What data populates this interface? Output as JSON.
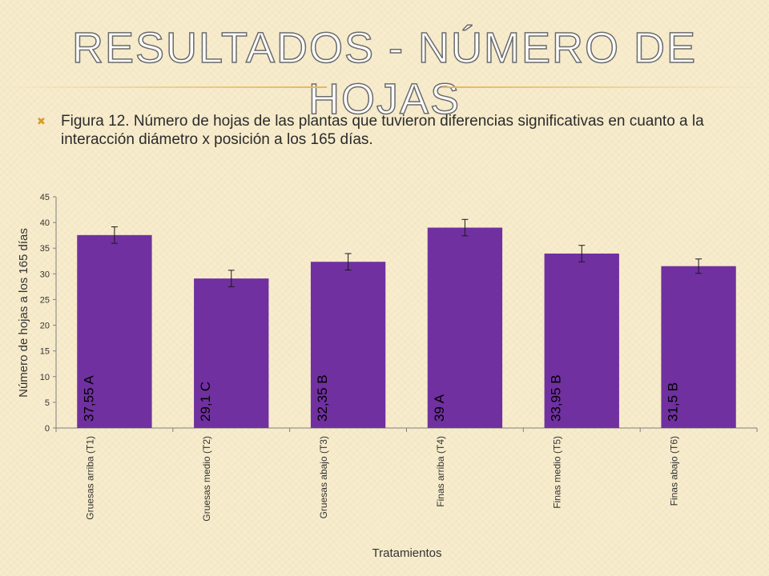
{
  "slide": {
    "title": "Resultados  -  Número de hojas",
    "bullet_icon": "x-bullet-icon",
    "caption": "Figura 12. Número de hojas de las plantas que tuvieron diferencias significativas en cuanto a la interacción diámetro x posición a los 165 días."
  },
  "colors": {
    "bar": "#7030a0",
    "background": "#f7eccd",
    "accent": "#e6b65c"
  },
  "chart_data": {
    "type": "bar",
    "categories": [
      "Gruesas arriba (T1)",
      "Gruesas medio (T2)",
      "Gruesas abajo (T3)",
      "Finas arriba (T4)",
      "Finas medio (T5)",
      "Finas abajo (T6)"
    ],
    "values": [
      37.55,
      29.1,
      32.35,
      39,
      33.95,
      31.5
    ],
    "error": [
      1.6,
      1.6,
      1.6,
      1.6,
      1.6,
      1.4
    ],
    "data_labels": [
      "37,55  A",
      "29,1  C",
      "32,35  B",
      "39  A",
      "33,95  B",
      "31,5  B"
    ],
    "xlabel": "Tratamientos",
    "ylabel": "Número de hojas a los 165 días",
    "ylim": [
      0,
      45
    ],
    "yticks": [
      0,
      5,
      10,
      15,
      20,
      25,
      30,
      35,
      40,
      45
    ],
    "grid": false,
    "legend": "none"
  }
}
